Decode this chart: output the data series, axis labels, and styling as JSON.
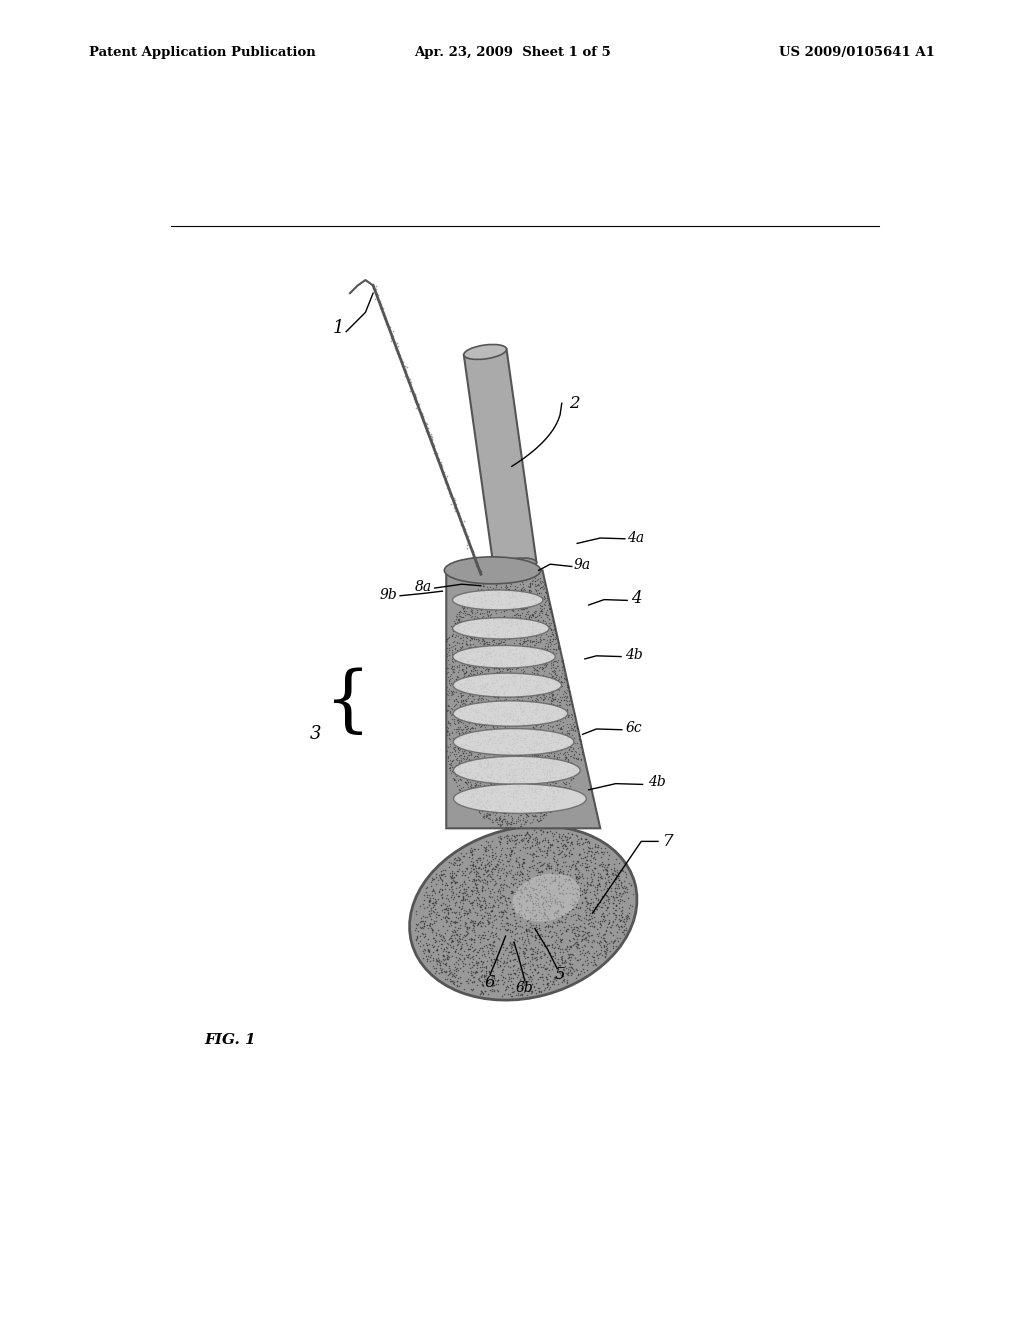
{
  "bg_color": "#ffffff",
  "header_left": "Patent Application Publication",
  "header_center": "Apr. 23, 2009  Sheet 1 of 5",
  "header_right": "US 2009/0105641 A1",
  "header_fontsize": 9.5,
  "fig_label": "FIG. 1",
  "stipple_color": "#333333",
  "device_gray": "#aaaaaa",
  "device_mid": "#888888",
  "device_dark": "#555555",
  "ridge_light": "#d8d8d8",
  "line_color": "#111111",
  "label_fs": 11,
  "label_fs_small": 10,
  "anno_lw": 1.0
}
